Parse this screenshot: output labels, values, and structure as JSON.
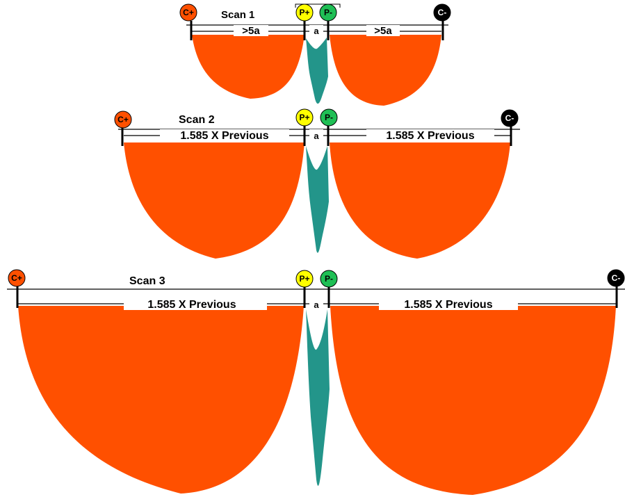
{
  "colors": {
    "lobe": "#ff5000",
    "center": "#23958a",
    "c_plus": "#ff5000",
    "p_plus": "#ffff00",
    "p_minus": "#1fbf55",
    "c_minus": "#000000",
    "line": "#000000"
  },
  "electrodes": {
    "c_plus": "C+",
    "p_plus": "P+",
    "p_minus": "P-",
    "c_minus": "C-"
  },
  "scans": [
    {
      "title": "Scan 1",
      "left_label": ">5a",
      "center_label": "a",
      "right_label": ">5a"
    },
    {
      "title": "Scan 2",
      "left_label": "1.585 X Previous",
      "center_label": "a",
      "right_label": "1.585 X Previous"
    },
    {
      "title": "Scan 3",
      "left_label": "1.585 X Previous",
      "center_label": "a",
      "right_label": "1.585 X Previous"
    }
  ]
}
